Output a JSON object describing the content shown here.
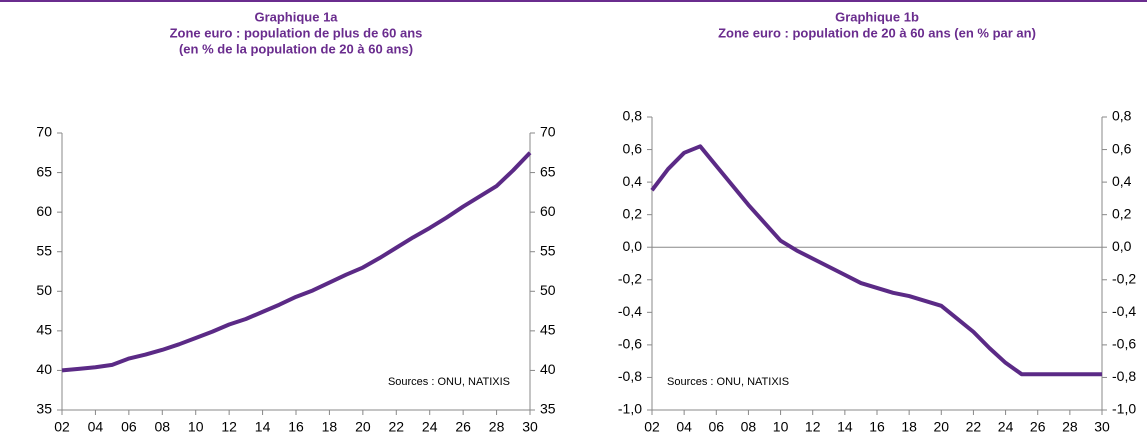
{
  "chart_data": [
    {
      "type": "line",
      "title": "Graphique 1a",
      "subtitle": [
        "Zone euro : population de plus de 60 ans",
        "(en % de la population de 20 à 60 ans)"
      ],
      "annotation": "Sources : ONU, NATIXIS",
      "x": [
        2,
        3,
        4,
        5,
        6,
        7,
        8,
        9,
        10,
        11,
        12,
        13,
        14,
        15,
        16,
        17,
        18,
        19,
        20,
        21,
        22,
        23,
        24,
        25,
        26,
        27,
        28,
        29,
        30
      ],
      "series": [
        {
          "name": "Population de plus de 60 ans",
          "color": "#5b2a86",
          "values": [
            40.0,
            40.2,
            40.4,
            40.7,
            41.5,
            42.0,
            42.6,
            43.3,
            44.1,
            44.9,
            45.8,
            46.5,
            47.4,
            48.3,
            49.3,
            50.1,
            51.1,
            52.1,
            53.0,
            54.2,
            55.5,
            56.8,
            58.0,
            59.3,
            60.7,
            62.0,
            63.3,
            65.3,
            67.5
          ]
        }
      ],
      "xlim": [
        2,
        30
      ],
      "xticks": [
        {
          "value": 2,
          "label": "02"
        },
        {
          "value": 4,
          "label": "04"
        },
        {
          "value": 6,
          "label": "06"
        },
        {
          "value": 8,
          "label": "08"
        },
        10,
        12,
        14,
        16,
        18,
        20,
        22,
        24,
        26,
        28,
        30
      ],
      "ylim": [
        35,
        70
      ],
      "yticks": [
        35,
        40,
        45,
        50,
        55,
        60,
        65,
        70
      ],
      "zero_line": false
    },
    {
      "type": "line",
      "title": "Graphique 1b",
      "subtitle": [
        "Zone euro : population de 20 à 60 ans (en % par an)"
      ],
      "annotation": "Sources : ONU, NATIXIS",
      "x": [
        2,
        3,
        4,
        5,
        6,
        7,
        8,
        9,
        10,
        11,
        12,
        13,
        14,
        15,
        16,
        17,
        18,
        19,
        20,
        21,
        22,
        23,
        24,
        25,
        26,
        27,
        28,
        29,
        30
      ],
      "series": [
        {
          "name": "Population de 20 à 60 ans",
          "color": "#5b2a86",
          "values": [
            0.35,
            0.48,
            0.58,
            0.62,
            0.5,
            0.38,
            0.26,
            0.15,
            0.04,
            -0.02,
            -0.07,
            -0.12,
            -0.17,
            -0.22,
            -0.25,
            -0.28,
            -0.3,
            -0.33,
            -0.36,
            -0.44,
            -0.52,
            -0.62,
            -0.71,
            -0.78,
            -0.78,
            -0.78,
            -0.78,
            -0.78,
            -0.78
          ]
        }
      ],
      "xlim": [
        2,
        30
      ],
      "xticks": [
        {
          "value": 2,
          "label": "02"
        },
        {
          "value": 4,
          "label": "04"
        },
        {
          "value": 6,
          "label": "06"
        },
        {
          "value": 8,
          "label": "08"
        },
        10,
        12,
        14,
        16,
        18,
        20,
        22,
        24,
        26,
        28,
        30
      ],
      "ylim": [
        -1.0,
        0.8
      ],
      "yticks": [
        {
          "value": -1.0,
          "label": "-1,0"
        },
        {
          "value": -0.8,
          "label": "-0,8"
        },
        {
          "value": -0.6,
          "label": "-0,6"
        },
        {
          "value": -0.4,
          "label": "-0,4"
        },
        {
          "value": -0.2,
          "label": "-0,2"
        },
        {
          "value": 0,
          "label": "0,0"
        },
        {
          "value": 0.2,
          "label": "0,2"
        },
        {
          "value": 0.4,
          "label": "0,4"
        },
        {
          "value": 0.6,
          "label": "0,6"
        },
        {
          "value": 0.8,
          "label": "0,8"
        }
      ],
      "zero_line": true
    }
  ]
}
